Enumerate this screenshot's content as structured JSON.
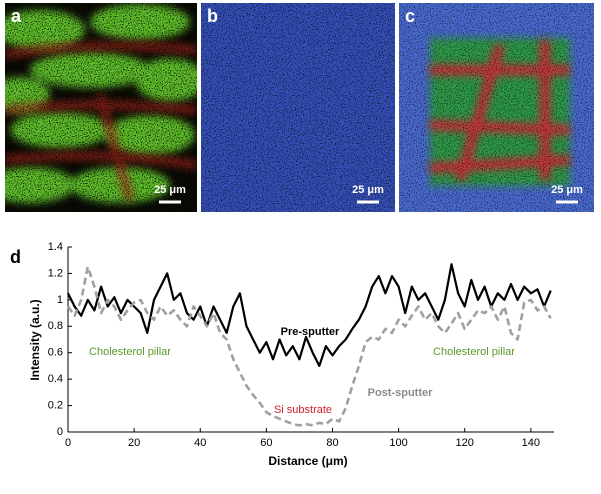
{
  "panels": [
    {
      "label": "a",
      "scale_bar": "25 μm"
    },
    {
      "label": "b",
      "scale_bar": "25 μm"
    },
    {
      "label": "c",
      "scale_bar": "25 μm"
    }
  ],
  "chart_data": {
    "type": "line",
    "panel_label": "d",
    "x_label": "Distance (μm)",
    "y_label": "Intensity (a.u.)",
    "x": [
      0,
      2,
      4,
      6,
      8,
      10,
      12,
      14,
      16,
      18,
      20,
      22,
      24,
      26,
      28,
      30,
      32,
      34,
      36,
      38,
      40,
      42,
      44,
      46,
      48,
      50,
      52,
      54,
      56,
      58,
      60,
      62,
      64,
      66,
      68,
      70,
      72,
      74,
      76,
      78,
      80,
      82,
      84,
      86,
      88,
      90,
      92,
      94,
      96,
      98,
      100,
      102,
      104,
      106,
      108,
      110,
      112,
      114,
      116,
      118,
      120,
      122,
      124,
      126,
      128,
      130,
      132,
      134,
      136,
      138,
      140,
      142,
      144,
      146
    ],
    "series": [
      {
        "name": "Pre-sputter",
        "color": "#000000",
        "dash": false,
        "values": [
          1.05,
          0.95,
          0.88,
          1.0,
          0.92,
          1.1,
          0.95,
          1.02,
          0.9,
          1.0,
          0.95,
          0.9,
          0.75,
          1.0,
          1.1,
          1.2,
          1.0,
          1.05,
          0.9,
          0.85,
          0.95,
          0.8,
          0.95,
          0.85,
          0.75,
          0.95,
          1.05,
          0.8,
          0.7,
          0.6,
          0.68,
          0.55,
          0.7,
          0.58,
          0.65,
          0.55,
          0.72,
          0.6,
          0.5,
          0.65,
          0.58,
          0.65,
          0.7,
          0.78,
          0.85,
          0.95,
          1.1,
          1.18,
          1.05,
          1.18,
          1.1,
          0.9,
          1.1,
          1.0,
          1.05,
          0.95,
          0.85,
          1.0,
          1.27,
          1.05,
          0.95,
          1.15,
          1.0,
          1.1,
          0.95,
          1.05,
          1.0,
          1.12,
          1.0,
          1.1,
          1.05,
          1.08,
          0.95,
          1.07
        ]
      },
      {
        "name": "Post-sputter",
        "color": "#a0a0a0",
        "dash": true,
        "values": [
          0.95,
          0.88,
          1.0,
          1.25,
          1.1,
          0.9,
          1.0,
          0.95,
          0.85,
          0.92,
          0.98,
          1.0,
          0.9,
          0.85,
          0.95,
          0.88,
          0.92,
          0.85,
          0.8,
          0.95,
          0.88,
          0.8,
          0.9,
          0.75,
          0.7,
          0.55,
          0.45,
          0.35,
          0.28,
          0.22,
          0.15,
          0.12,
          0.1,
          0.08,
          0.06,
          0.05,
          0.06,
          0.05,
          0.07,
          0.06,
          0.1,
          0.08,
          0.18,
          0.35,
          0.5,
          0.68,
          0.72,
          0.7,
          0.78,
          0.75,
          0.85,
          0.8,
          0.88,
          0.95,
          0.85,
          0.9,
          0.8,
          0.75,
          0.82,
          0.9,
          0.78,
          0.85,
          0.92,
          0.9,
          0.95,
          0.85,
          0.95,
          0.75,
          0.7,
          0.98,
          1.0,
          0.92,
          0.95,
          0.86
        ]
      }
    ],
    "annotations": [
      {
        "text": "Cholesterol pillar",
        "color": "#5a9a2a"
      },
      {
        "text": "Cholesterol pillar",
        "color": "#5a9a2a"
      },
      {
        "text": "Si substrate",
        "color": "#d0202a"
      }
    ],
    "xlim": [
      0,
      147
    ],
    "ylim": [
      0,
      1.4
    ],
    "xticks": [
      0,
      20,
      40,
      60,
      80,
      100,
      120,
      140
    ],
    "yticks": [
      0,
      0.2,
      0.4,
      0.6,
      0.8,
      1,
      1.2,
      1.4
    ]
  }
}
